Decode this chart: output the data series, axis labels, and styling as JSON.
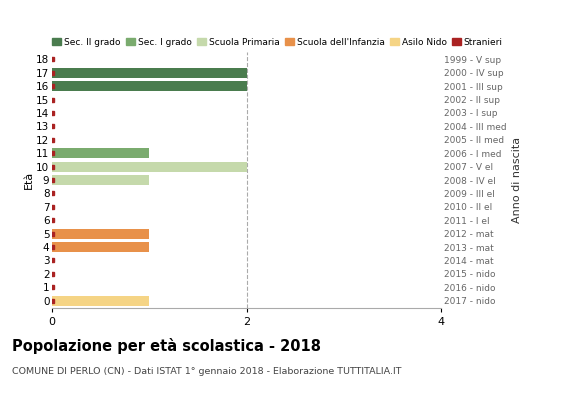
{
  "ages": [
    0,
    1,
    2,
    3,
    4,
    5,
    6,
    7,
    8,
    9,
    10,
    11,
    12,
    13,
    14,
    15,
    16,
    17,
    18
  ],
  "anno_nascita_by_age": {
    "0": "2017 - nido",
    "1": "2016 - nido",
    "2": "2015 - nido",
    "3": "2014 - mat",
    "4": "2013 - mat",
    "5": "2012 - mat",
    "6": "2011 - I el",
    "7": "2010 - II el",
    "8": "2009 - III el",
    "9": "2008 - IV el",
    "10": "2007 - V el",
    "11": "2006 - I med",
    "12": "2005 - II med",
    "13": "2004 - III med",
    "14": "2003 - I sup",
    "15": "2002 - II sup",
    "16": "2001 - III sup",
    "17": "2000 - IV sup",
    "18": "1999 - V sup"
  },
  "bars": [
    {
      "age": 17,
      "value": 2,
      "color": "#4a7c4e"
    },
    {
      "age": 16,
      "value": 2,
      "color": "#4a7c4e"
    },
    {
      "age": 11,
      "value": 1,
      "color": "#7aab6e"
    },
    {
      "age": 10,
      "value": 2,
      "color": "#c5d9ab"
    },
    {
      "age": 9,
      "value": 1,
      "color": "#c5d9ab"
    },
    {
      "age": 5,
      "value": 1,
      "color": "#e8914a"
    },
    {
      "age": 4,
      "value": 1,
      "color": "#e8914a"
    },
    {
      "age": 0,
      "value": 1,
      "color": "#f5d485"
    }
  ],
  "stranieri_ages": [
    0,
    1,
    2,
    3,
    4,
    5,
    6,
    7,
    8,
    9,
    10,
    11,
    12,
    13,
    14,
    15,
    16,
    17,
    18
  ],
  "stranieri_color": "#aa2222",
  "xlim": [
    0,
    4
  ],
  "ylim": [
    -0.55,
    18.55
  ],
  "xticks": [
    0,
    2,
    4
  ],
  "title": "Popolazione per età scolastica - 2018",
  "subtitle": "COMUNE DI PERLO (CN) - Dati ISTAT 1° gennaio 2018 - Elaborazione TUTTITALIA.IT",
  "ylabel_left": "Età",
  "ylabel_right": "Anno di nascita",
  "background_color": "#ffffff",
  "legend_labels": [
    "Sec. II grado",
    "Sec. I grado",
    "Scuola Primaria",
    "Scuola dell'Infanzia",
    "Asilo Nido",
    "Stranieri"
  ],
  "legend_colors": [
    "#4a7c4e",
    "#7aab6e",
    "#c5d9ab",
    "#e8914a",
    "#f5d485",
    "#aa2222"
  ],
  "bar_height": 0.75
}
